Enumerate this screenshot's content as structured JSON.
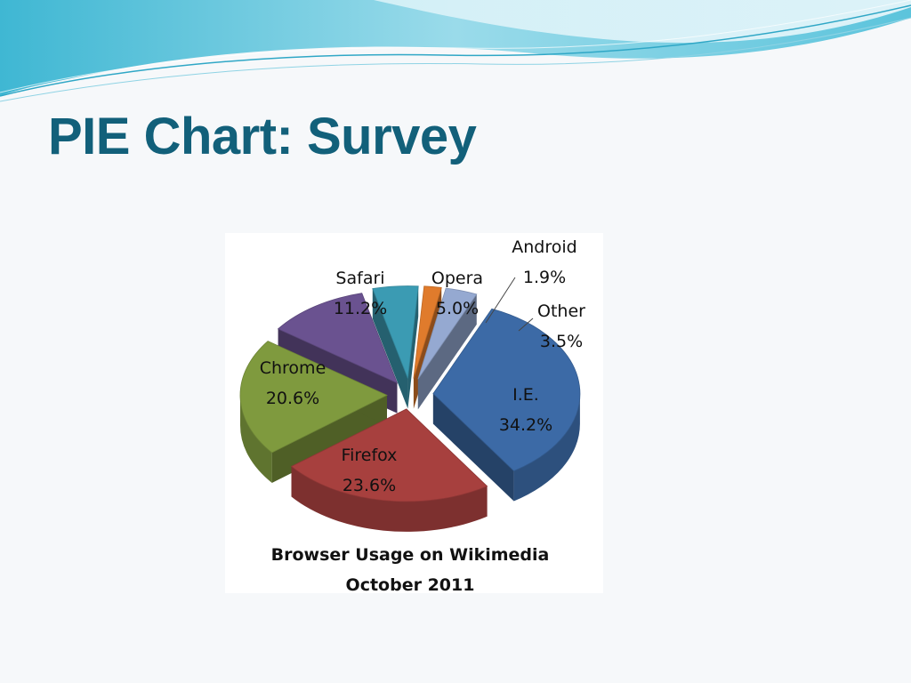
{
  "slide": {
    "title": "PIE Chart: Survey"
  },
  "colors": {
    "title": "#12607a",
    "wave_light": "#bfe9f2",
    "wave_mid": "#7fd3e6",
    "wave_dark": "#2fb0cf"
  },
  "chart_data": {
    "type": "pie",
    "style": "3d-exploded",
    "title": "Browser Usage on Wikimedia",
    "subtitle": "October 2011",
    "unit": "%",
    "slices": [
      {
        "label": "I.E.",
        "value": 34.2,
        "value_text": "34.2%",
        "color": "#3c6aa6"
      },
      {
        "label": "Firefox",
        "value": 23.6,
        "value_text": "23.6%",
        "color": "#a7403e"
      },
      {
        "label": "Chrome",
        "value": 20.6,
        "value_text": "20.6%",
        "color": "#7f9a3e"
      },
      {
        "label": "Safari",
        "value": 11.2,
        "value_text": "11.2%",
        "color": "#6a5290"
      },
      {
        "label": "Opera",
        "value": 5.0,
        "value_text": "5.0%",
        "color": "#3b9bb3"
      },
      {
        "label": "Android",
        "value": 1.9,
        "value_text": "1.9%",
        "color": "#e07b2c"
      },
      {
        "label": "Other",
        "value": 3.5,
        "value_text": "3.5%",
        "color": "#95a9d1"
      }
    ]
  }
}
